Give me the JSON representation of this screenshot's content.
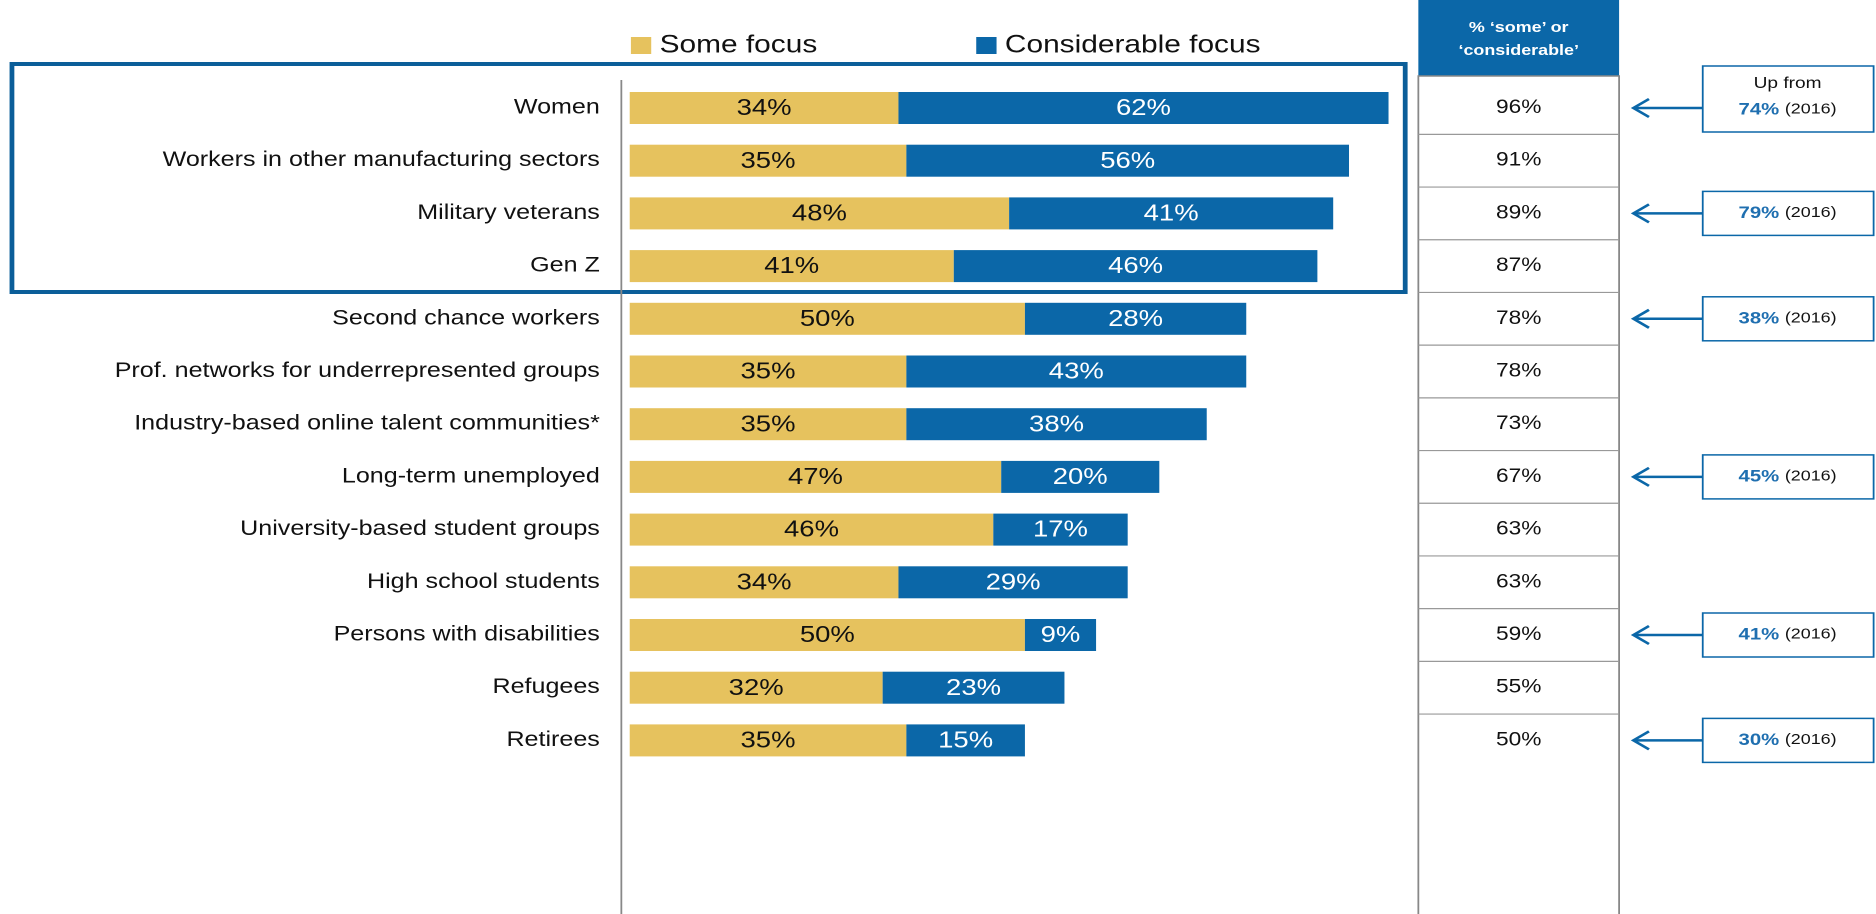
{
  "chart_data": {
    "type": "stacked-bar",
    "orientation": "horizontal",
    "categories": [
      "Women",
      "Workers in other manufacturing sectors",
      "Military veterans",
      "Gen Z",
      "Second chance workers",
      "Prof. networks for underrepresented groups",
      "Industry-based online talent communities*",
      "Long-term unemployed",
      "University-based student groups",
      "High school students",
      "Persons with disabilities",
      "Refugees",
      "Retirees"
    ],
    "series": [
      {
        "name": "Some focus",
        "color": "#e6c25e",
        "values": [
          34,
          35,
          48,
          41,
          50,
          35,
          35,
          47,
          46,
          34,
          50,
          32,
          35
        ],
        "value_labels": [
          "34%",
          "35%",
          "48%",
          "41%",
          "50%",
          "35%",
          "35%",
          "47%",
          "46%",
          "34%",
          "50%",
          "32%",
          "35%"
        ]
      },
      {
        "name": "Considerable focus",
        "color": "#0b67a8",
        "values": [
          62,
          56,
          41,
          46,
          28,
          43,
          38,
          20,
          17,
          29,
          9,
          23,
          15
        ],
        "value_labels": [
          "62%",
          "56%",
          "41%",
          "46%",
          "28%",
          "43%",
          "38%",
          "20%",
          "17%",
          "29%",
          "9%",
          "23%",
          "15%"
        ]
      }
    ],
    "table": {
      "header": [
        "% ‘some’ or",
        "‘considerable’"
      ],
      "values": [
        "96%",
        "91%",
        "89%",
        "87%",
        "78%",
        "78%",
        "73%",
        "67%",
        "63%",
        "63%",
        "59%",
        "55%",
        "50%"
      ]
    },
    "annotations": [
      {
        "category": "Women",
        "lead": "Up from",
        "value": "74%",
        "note": "(2016)"
      },
      {
        "category": "Military veterans",
        "value": "79%",
        "note": "(2016)"
      },
      {
        "category": "Second chance workers",
        "value": "38%",
        "note": "(2016)"
      },
      {
        "category": "Long-term unemployed",
        "value": "45%",
        "note": "(2016)"
      },
      {
        "category": "Persons with disabilities",
        "value": "41%",
        "note": "(2016)"
      },
      {
        "category": "Retirees",
        "value": "30%",
        "note": "(2016)"
      }
    ],
    "legend": "top"
  }
}
